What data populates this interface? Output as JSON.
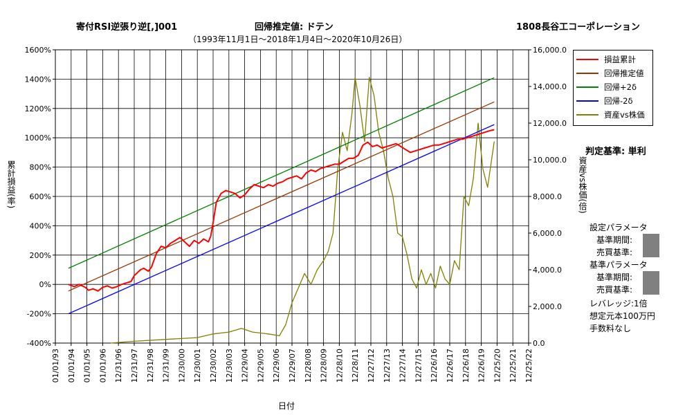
{
  "header": {
    "strategy_title": "寄付RSI逆張り逆[,]001",
    "regression_label": "回帰推定値: ドテン",
    "company": "1808長谷工コーポレーション",
    "period": "（1993年11月1日～2018年1月4日～2020年10月26日）"
  },
  "judgement": "判定基準: 単利",
  "settings": {
    "set_params": "設定パラメータ",
    "base_period": "基準期間:",
    "trade_criteria": "売買基準:",
    "base_params": "基準パラメータ",
    "base_period2": "基準期間:",
    "trade_criteria2": "売買基準:",
    "leverage": "レバレッジ:1倍",
    "capital": "想定元本100万円",
    "fees": "手数料なし",
    "box_color": "#808080"
  },
  "chart_data": {
    "type": "line",
    "xlabel": "日付",
    "ylabel_left": "累計損益(率)",
    "ylabel_right": "資産vs株価(倍)",
    "x_ticks": [
      "01/01/93",
      "01/01/94",
      "01/01/95",
      "01/01/96",
      "12/31/96",
      "12/31/97",
      "12/31/98",
      "12/31/99",
      "12/30/00",
      "12/30/01",
      "12/30/02",
      "12/30/03",
      "12/29/04",
      "12/29/05",
      "12/29/06",
      "12/29/07",
      "12/28/08",
      "12/28/09",
      "12/28/10",
      "12/28/11",
      "12/27/12",
      "12/27/13",
      "12/27/14",
      "12/27/15",
      "12/26/16",
      "12/26/17",
      "12/26/18",
      "12/26/19",
      "12/25/20",
      "12/25/21",
      "12/25/22"
    ],
    "x_range": [
      1993.0,
      2023.0
    ],
    "ylim_left": [
      -400,
      1600
    ],
    "ylim_right": [
      0,
      16000
    ],
    "y_ticks_left": [
      "-400%",
      "-200%",
      "0%",
      "200%",
      "400%",
      "600%",
      "800%",
      "1000%",
      "1200%",
      "1400%",
      "1600%"
    ],
    "y_ticks_right": [
      "0.0",
      "2,000.0",
      "4,000.0",
      "6,000.0",
      "8,000.0",
      "10,000.0",
      "12,000.0",
      "14,000.0",
      "16,000.0"
    ],
    "grid": true,
    "legend_position": "top-right",
    "series": [
      {
        "name": "損益累計",
        "color": "#ff0000",
        "axis": "left",
        "x": [
          1993.83,
          1994.2,
          1994.5,
          1994.9,
          1995.1,
          1995.4,
          1995.7,
          1996.0,
          1996.3,
          1996.6,
          1996.9,
          1997.2,
          1997.5,
          1997.8,
          1998.0,
          1998.2,
          1998.4,
          1998.6,
          1998.9,
          1999.1,
          1999.4,
          1999.7,
          2000.0,
          2000.3,
          2000.6,
          2000.9,
          2001.2,
          2001.5,
          2001.8,
          2002.1,
          2002.4,
          2002.7,
          2002.85,
          2003.0,
          2003.2,
          2003.5,
          2003.8,
          2004.1,
          2004.4,
          2004.7,
          2005.0,
          2005.3,
          2005.6,
          2005.9,
          2006.2,
          2006.5,
          2006.8,
          2007.1,
          2007.4,
          2007.7,
          2008.0,
          2008.3,
          2008.6,
          2008.9,
          2009.2,
          2009.5,
          2009.8,
          2010.1,
          2010.4,
          2010.7,
          2011.0,
          2011.3,
          2011.6,
          2011.9,
          2012.2,
          2012.5,
          2012.8,
          2013.1,
          2013.4,
          2013.7,
          2014.0,
          2014.3,
          2014.6,
          2014.9,
          2015.2,
          2015.5,
          2015.8,
          2016.1,
          2016.4,
          2016.7,
          2017.0,
          2017.3,
          2017.6,
          2017.9,
          2018.2,
          2018.5,
          2018.8,
          2019.1,
          2019.4,
          2019.7,
          2020.0,
          2020.3,
          2020.6,
          2020.82
        ],
        "y": [
          0,
          -15,
          0,
          -20,
          -40,
          -30,
          -45,
          -20,
          -10,
          -25,
          -15,
          0,
          10,
          20,
          60,
          80,
          100,
          110,
          90,
          120,
          210,
          260,
          250,
          280,
          300,
          320,
          290,
          260,
          300,
          280,
          310,
          290,
          330,
          420,
          560,
          620,
          640,
          630,
          620,
          590,
          610,
          650,
          680,
          670,
          660,
          680,
          670,
          690,
          700,
          720,
          730,
          740,
          720,
          760,
          780,
          770,
          790,
          800,
          810,
          820,
          820,
          840,
          860,
          860,
          880,
          950,
          970,
          940,
          950,
          930,
          940,
          950,
          960,
          940,
          920,
          900,
          910,
          920,
          930,
          940,
          950,
          950,
          960,
          970,
          980,
          990,
          990,
          1000,
          1010,
          1020,
          1030,
          1040,
          1050,
          1055
        ]
      },
      {
        "name": "回帰推定値",
        "color": "#993300",
        "axis": "left",
        "x": [
          1993.83,
          2020.82
        ],
        "y": [
          -45,
          1245
        ]
      },
      {
        "name": "回帰+2δ",
        "color": "#008000",
        "axis": "left",
        "x": [
          1993.83,
          2020.82
        ],
        "y": [
          110,
          1410
        ]
      },
      {
        "name": "回帰-2δ",
        "color": "#0000ff",
        "axis": "left",
        "x": [
          1993.83,
          2020.82
        ],
        "y": [
          -200,
          1090
        ]
      },
      {
        "name": "資産vs株価",
        "color": "#808000",
        "axis": "right",
        "x": [
          1996.5,
          1998,
          2000,
          2002,
          2003,
          2004,
          2004.8,
          2005.5,
          2006.5,
          2007.2,
          2007.6,
          2008.0,
          2008.4,
          2008.8,
          2009.2,
          2009.6,
          2010.0,
          2010.3,
          2010.6,
          2010.9,
          2011.2,
          2011.5,
          2011.8,
          2012.0,
          2012.3,
          2012.6,
          2012.9,
          2013.2,
          2013.5,
          2013.8,
          2014.1,
          2014.4,
          2014.7,
          2015.0,
          2015.3,
          2015.6,
          2015.9,
          2016.2,
          2016.5,
          2016.8,
          2017.1,
          2017.4,
          2017.7,
          2018.0,
          2018.3,
          2018.6,
          2018.9,
          2019.2,
          2019.5,
          2019.8,
          2020.1,
          2020.4,
          2020.82
        ],
        "y": [
          0,
          100,
          200,
          300,
          500,
          600,
          800,
          600,
          500,
          400,
          1000,
          2200,
          3000,
          3800,
          3200,
          4000,
          4500,
          5000,
          6000,
          9500,
          11500,
          10500,
          12500,
          14500,
          13000,
          11000,
          14500,
          13500,
          11500,
          10500,
          9000,
          8000,
          6000,
          5800,
          4800,
          3500,
          3000,
          4000,
          3200,
          3800,
          3000,
          4200,
          3500,
          3200,
          4500,
          4000,
          8000,
          7500,
          9000,
          12000,
          9500,
          8500,
          11000
        ]
      }
    ]
  }
}
